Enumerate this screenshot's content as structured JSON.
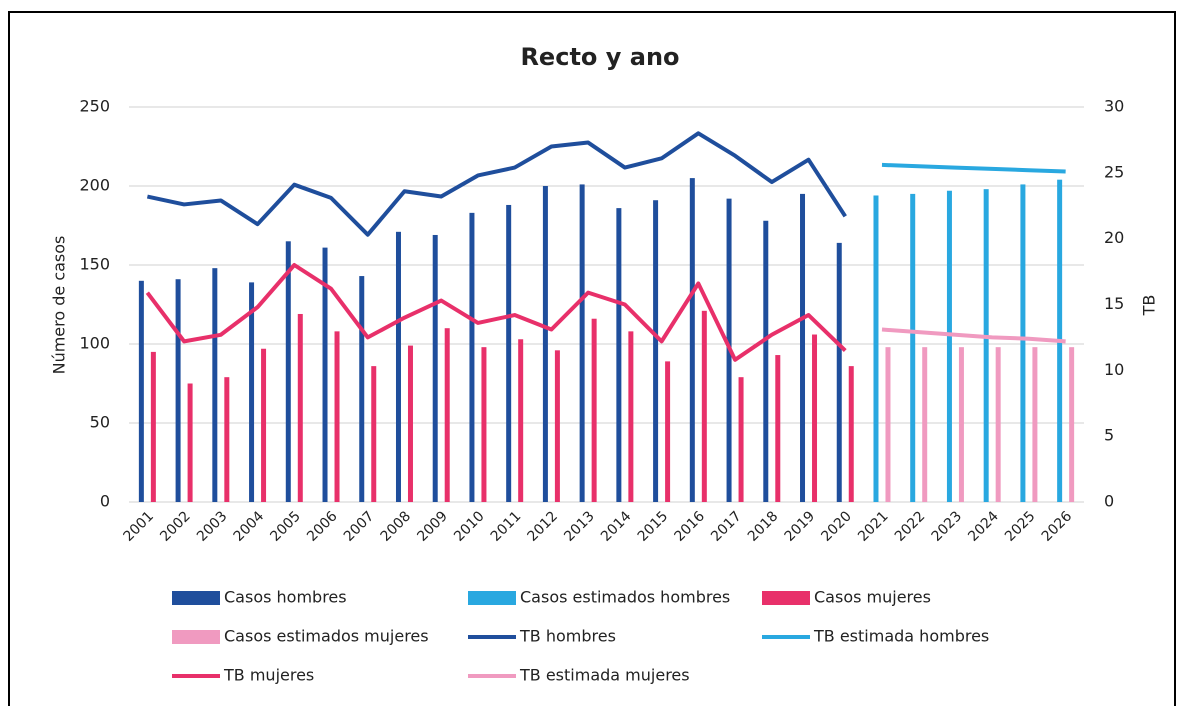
{
  "chart_data": {
    "type": "bar",
    "title": "Recto y ano",
    "y_label": "Número de casos",
    "y2_label": "TB",
    "categories": [
      "2001",
      "2002",
      "2003",
      "2004",
      "2005",
      "2006",
      "2007",
      "2008",
      "2009",
      "2010",
      "2011",
      "2012",
      "2013",
      "2014",
      "2015",
      "2016",
      "2017",
      "2018",
      "2019",
      "2020",
      "2021",
      "2022",
      "2023",
      "2024",
      "2025",
      "2026"
    ],
    "ylim": [
      0,
      250
    ],
    "yticks": [
      0,
      50,
      100,
      150,
      200,
      250
    ],
    "y2lim": [
      0,
      30
    ],
    "y2ticks": [
      0,
      5,
      10,
      15,
      20,
      25,
      30
    ],
    "grid": true,
    "legend": "bottom",
    "series": [
      {
        "name": "Casos hombres",
        "type": "bar",
        "color": "#1f4e9c",
        "values": [
          140,
          141,
          148,
          139,
          165,
          161,
          143,
          171,
          169,
          183,
          188,
          200,
          201,
          186,
          191,
          205,
          192,
          178,
          195,
          164,
          null,
          null,
          null,
          null,
          null,
          null
        ]
      },
      {
        "name": "Casos estimados hombres",
        "type": "bar",
        "color": "#29a8e0",
        "values": [
          null,
          null,
          null,
          null,
          null,
          null,
          null,
          null,
          null,
          null,
          null,
          null,
          null,
          null,
          null,
          null,
          null,
          null,
          null,
          null,
          194,
          195,
          197,
          198,
          201,
          204
        ]
      },
      {
        "name": "Casos mujeres",
        "type": "bar",
        "color": "#e8306a",
        "values": [
          95,
          75,
          79,
          97,
          119,
          108,
          86,
          99,
          110,
          98,
          103,
          96,
          116,
          108,
          89,
          121,
          79,
          93,
          106,
          86,
          null,
          null,
          null,
          null,
          null,
          null
        ]
      },
      {
        "name": "Casos estimados mujeres",
        "type": "bar",
        "color": "#f09ac0",
        "values": [
          null,
          null,
          null,
          null,
          null,
          null,
          null,
          null,
          null,
          null,
          null,
          null,
          null,
          null,
          null,
          null,
          null,
          null,
          null,
          null,
          98,
          98,
          98,
          98,
          98,
          98
        ]
      },
      {
        "name": "TB hombres",
        "type": "line",
        "axis": "y2",
        "color": "#1f4e9c",
        "values": [
          23.2,
          22.6,
          22.9,
          21.1,
          24.1,
          23.1,
          20.3,
          23.6,
          23.2,
          24.8,
          25.4,
          27.0,
          27.3,
          25.4,
          26.1,
          28.0,
          26.3,
          24.3,
          26.0,
          21.7,
          null,
          null,
          null,
          null,
          null,
          null
        ]
      },
      {
        "name": "TB estimada hombres",
        "type": "line",
        "axis": "y2",
        "color": "#29a8e0",
        "values": [
          null,
          null,
          null,
          null,
          null,
          null,
          null,
          null,
          null,
          null,
          null,
          null,
          null,
          null,
          null,
          null,
          null,
          null,
          null,
          null,
          25.6,
          25.5,
          25.4,
          25.3,
          25.2,
          25.1
        ]
      },
      {
        "name": "TB mujeres",
        "type": "line",
        "axis": "y2",
        "color": "#e8306a",
        "values": [
          15.9,
          12.2,
          12.7,
          14.8,
          18.0,
          16.2,
          12.5,
          14.0,
          15.3,
          13.6,
          14.2,
          13.1,
          15.9,
          15.0,
          12.2,
          16.6,
          10.8,
          12.7,
          14.2,
          11.5,
          null,
          null,
          null,
          null,
          null,
          null
        ]
      },
      {
        "name": "TB estimada mujeres",
        "type": "line",
        "axis": "y2",
        "color": "#f09ac0",
        "values": [
          null,
          null,
          null,
          null,
          null,
          null,
          null,
          null,
          null,
          null,
          null,
          null,
          null,
          null,
          null,
          null,
          null,
          null,
          null,
          null,
          13.1,
          12.9,
          12.7,
          12.5,
          12.4,
          12.2
        ]
      }
    ]
  }
}
